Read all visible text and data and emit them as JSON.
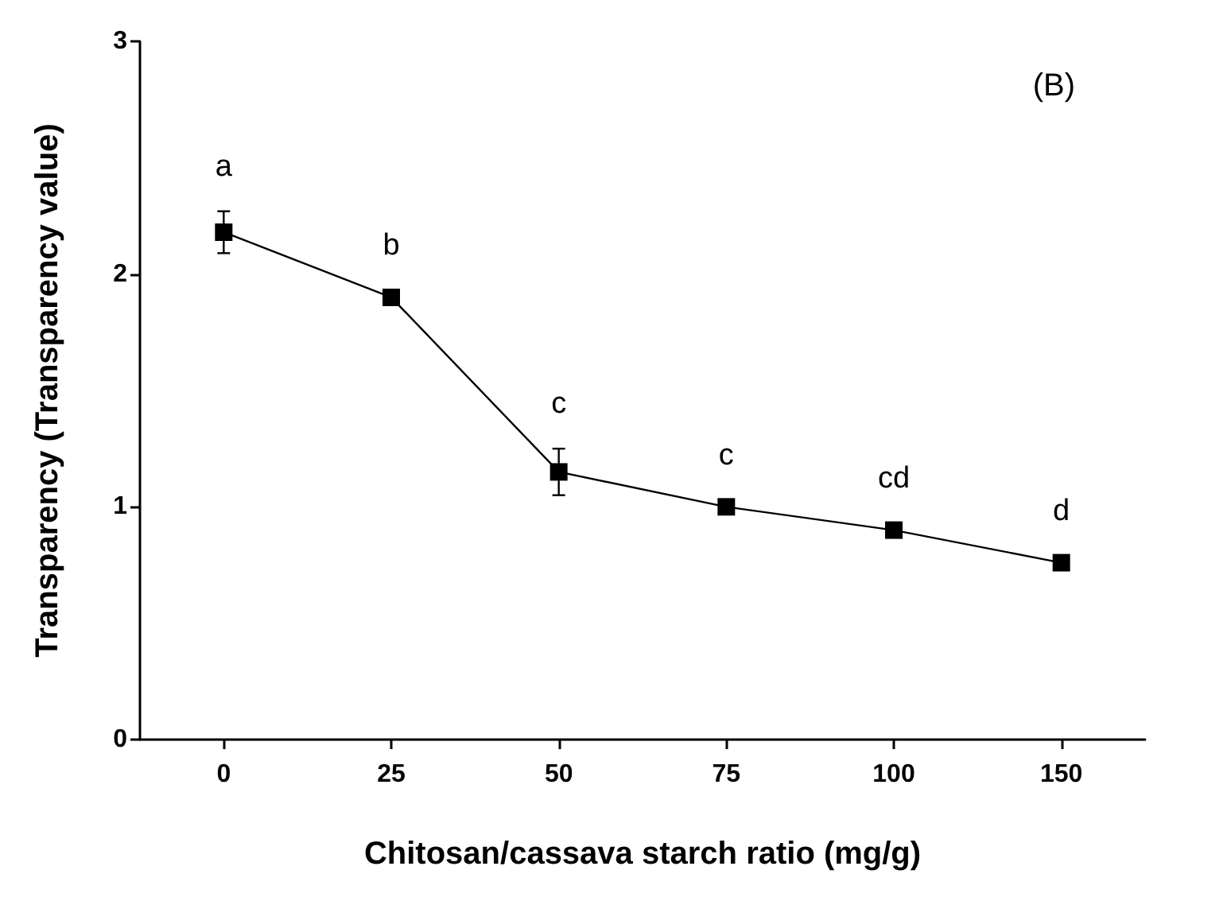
{
  "chart_data": {
    "type": "line",
    "xlabel": "Chitosan/cassava starch ratio (mg/g)",
    "ylabel": "Transparency (Transparency value)",
    "categories": [
      "0",
      "25",
      "50",
      "75",
      "100",
      "150"
    ],
    "values": [
      2.18,
      1.9,
      1.15,
      1.0,
      0.9,
      0.76
    ],
    "errors": [
      0.09,
      0.03,
      0.1,
      0.03,
      0.03,
      0.03
    ],
    "color": "#000000",
    "marker": "square",
    "line_style": "solid",
    "grid": false,
    "ylim": [
      0,
      3
    ],
    "yticks": [
      0,
      1,
      2,
      3
    ],
    "annotations": [
      "(B)",
      {
        "text": "a",
        "x": "0",
        "y": 2.18
      },
      {
        "text": "b",
        "x": "25",
        "y": 1.9
      },
      {
        "text": "c",
        "x": "50",
        "y": 1.15
      },
      {
        "text": "c",
        "x": "75",
        "y": 1.0
      },
      {
        "text": "cd",
        "x": "100",
        "y": 0.9
      },
      {
        "text": "d",
        "x": "150",
        "y": 0.76
      }
    ]
  }
}
